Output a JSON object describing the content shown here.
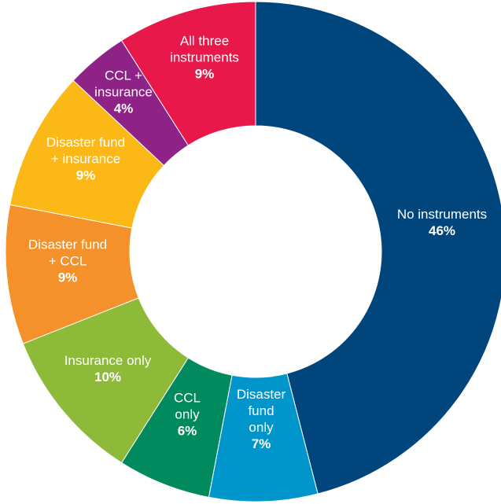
{
  "chart_data": {
    "type": "pie",
    "donut": true,
    "categories": [
      "No instruments",
      "Disaster fund only",
      "CCL only",
      "Insurance only",
      "Disaster fund + CCL",
      "Disaster fund + insurance",
      "CCL + insurance",
      "All three instruments"
    ],
    "values": [
      46,
      7,
      6,
      10,
      9,
      9,
      4,
      9
    ],
    "value_labels": [
      "46%",
      "7%",
      "6%",
      "10%",
      "9%",
      "9%",
      "4%",
      "9%"
    ],
    "label_lines": [
      [
        "No instruments"
      ],
      [
        "Disaster",
        "fund",
        "only"
      ],
      [
        "CCL",
        "only"
      ],
      [
        "Insurance only"
      ],
      [
        "Disaster fund",
        "+ CCL"
      ],
      [
        "Disaster fund",
        "+ insurance"
      ],
      [
        "CCL +",
        "insurance"
      ],
      [
        "All three",
        "instruments"
      ]
    ],
    "colors": [
      "#00457c",
      "#0096cc",
      "#008a5e",
      "#8dba38",
      "#f4912a",
      "#fbb817",
      "#8e2287",
      "#e8194a"
    ],
    "start": "12 o'clock",
    "direction": "clockwise",
    "legend": "none"
  }
}
